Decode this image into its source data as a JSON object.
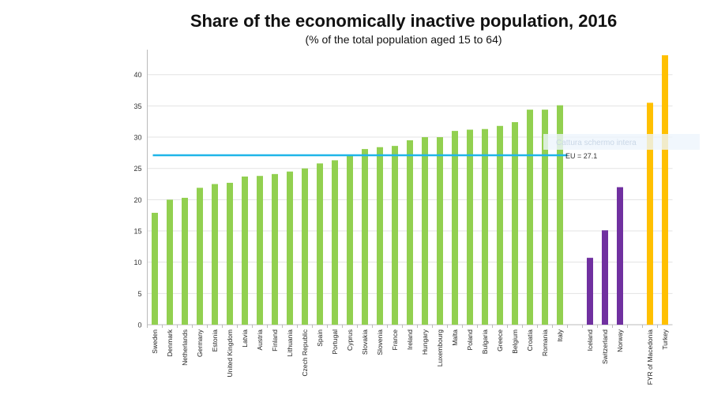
{
  "chart_data": {
    "type": "bar",
    "title": "Share of the economically inactive population, 2016",
    "subtitle": "(% of the total population aged 15 to 64)",
    "xlabel": "",
    "ylabel": "",
    "ylim": [
      0,
      44
    ],
    "yticks": [
      0,
      5,
      10,
      15,
      20,
      25,
      30,
      35,
      40
    ],
    "grid": true,
    "categories": [
      "Sweden",
      "Denmark",
      "Netherlands",
      "Germany",
      "Estonia",
      "United Kingdom",
      "Latvia",
      "Austria",
      "Finland",
      "Lithuania",
      "Czech Republic",
      "Spain",
      "Portugal",
      "Cyprus",
      "Slovakia",
      "Slovenia",
      "France",
      "Ireland",
      "Hungary",
      "Luxembourg",
      "Malta",
      "Poland",
      "Bulgaria",
      "Greece",
      "Belgium",
      "Croatia",
      "Romania",
      "Italy",
      "",
      "Iceland",
      "Switzerland",
      "Norway",
      "",
      "FYR of Macedonia",
      "Turkey"
    ],
    "values": [
      17.9,
      20.0,
      20.3,
      21.9,
      22.5,
      22.7,
      23.7,
      23.8,
      24.1,
      24.5,
      25.0,
      25.8,
      26.3,
      27.0,
      28.1,
      28.4,
      28.6,
      29.5,
      30.0,
      30.0,
      31.0,
      31.2,
      31.3,
      31.8,
      32.4,
      34.4,
      34.4,
      35.1,
      null,
      10.7,
      15.1,
      22.0,
      null,
      35.5,
      43.1
    ],
    "groups": [
      "eu",
      "eu",
      "eu",
      "eu",
      "eu",
      "eu",
      "eu",
      "eu",
      "eu",
      "eu",
      "eu",
      "eu",
      "eu",
      "eu",
      "eu",
      "eu",
      "eu",
      "eu",
      "eu",
      "eu",
      "eu",
      "eu",
      "eu",
      "eu",
      "eu",
      "eu",
      "eu",
      "eu",
      "",
      "efta",
      "efta",
      "efta",
      "",
      "candidate",
      "candidate"
    ],
    "colors": {
      "eu": "#92d050",
      "efta": "#7030a0",
      "candidate": "#ffc000",
      "reference": "#1fb5e8"
    },
    "reference_line": {
      "label": "EU = 27.1",
      "value": 27.1
    },
    "overlay_text": "Cattura schermo intera"
  }
}
